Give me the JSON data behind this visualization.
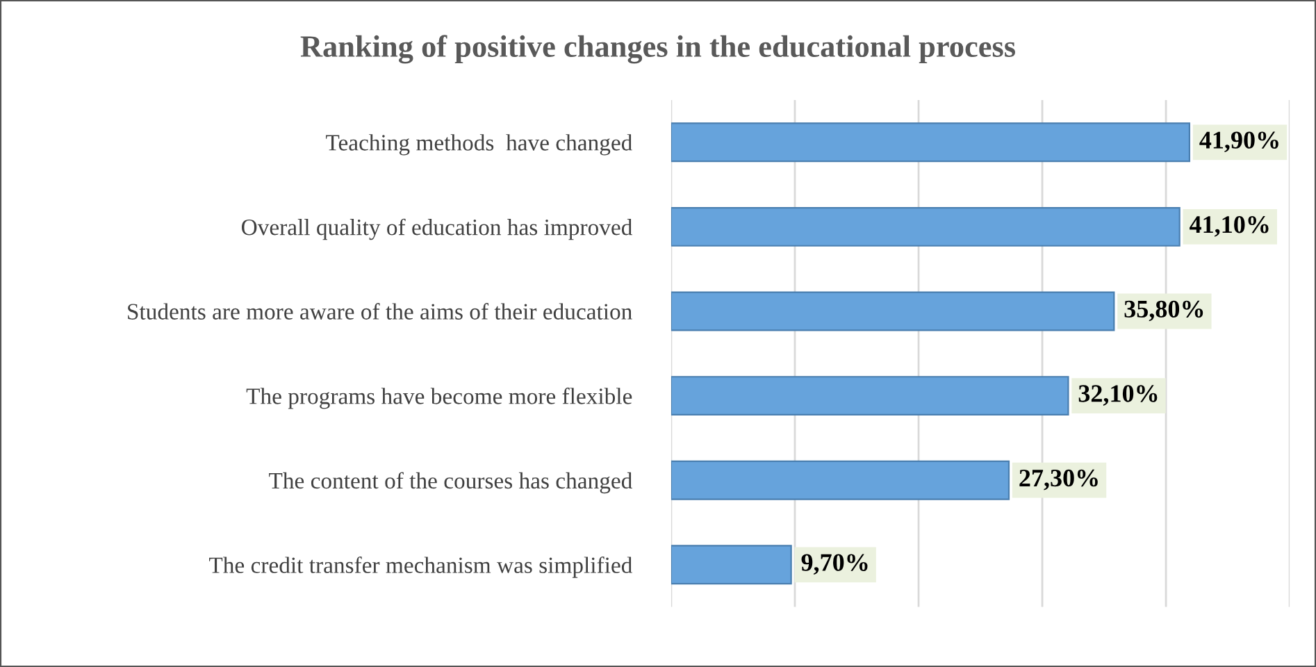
{
  "chart_data": {
    "type": "bar",
    "orientation": "horizontal",
    "title": "Ranking of positive changes in the educational process",
    "categories": [
      "Teaching methods  have changed",
      "Overall quality of education has improved",
      "Students are more aware of the aims of their education",
      "The programs have become more flexible",
      "The content of the courses has changed",
      "The credit transfer mechanism was simplified"
    ],
    "values": [
      41.9,
      41.1,
      35.8,
      32.1,
      27.3,
      9.7
    ],
    "value_labels": [
      "41,90%",
      "41,10%",
      "35,80%",
      "32,10%",
      "27,30%",
      "9,70%"
    ],
    "color": "#66a3dc",
    "xlim": [
      0,
      50
    ],
    "xticks": [
      {
        "value": 0,
        "label": null
      },
      {
        "value": 10,
        "label": null
      },
      {
        "value": 20,
        "label": null
      },
      {
        "value": 30,
        "label": null
      },
      {
        "value": 40,
        "label": null
      },
      {
        "value": 50,
        "label": null
      }
    ],
    "tick_labels": "y",
    "grid": "x",
    "legend": false
  }
}
